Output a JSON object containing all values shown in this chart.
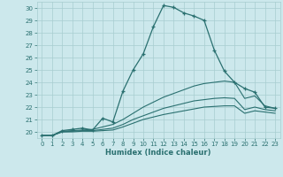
{
  "xlabel": "Humidex (Indice chaleur)",
  "xlim": [
    -0.5,
    23.5
  ],
  "ylim": [
    19.5,
    30.5
  ],
  "yticks": [
    20,
    21,
    22,
    23,
    24,
    25,
    26,
    27,
    28,
    29,
    30
  ],
  "xticks": [
    0,
    1,
    2,
    3,
    4,
    5,
    6,
    7,
    8,
    9,
    10,
    11,
    12,
    13,
    14,
    15,
    16,
    17,
    18,
    19,
    20,
    21,
    22,
    23
  ],
  "bg_color": "#cce8ec",
  "line_color": "#2a7070",
  "lines": [
    {
      "x": [
        0,
        1,
        2,
        3,
        4,
        5,
        6,
        7,
        8,
        9,
        10,
        11,
        12,
        13,
        14,
        15,
        16,
        17,
        18,
        19,
        20,
        21,
        22,
        23
      ],
      "y": [
        19.7,
        19.7,
        20.1,
        20.2,
        20.3,
        20.15,
        21.1,
        20.8,
        23.3,
        25.0,
        26.3,
        28.5,
        30.2,
        30.05,
        29.6,
        29.35,
        29.0,
        26.6,
        24.9,
        24.0,
        23.5,
        23.2,
        22.0,
        21.9
      ],
      "marker": true
    },
    {
      "x": [
        0,
        1,
        2,
        3,
        4,
        5,
        6,
        7,
        8,
        9,
        10,
        11,
        12,
        13,
        14,
        15,
        16,
        17,
        18,
        19,
        20,
        21,
        22,
        23
      ],
      "y": [
        19.7,
        19.7,
        20.05,
        20.1,
        20.15,
        20.2,
        20.4,
        20.6,
        21.0,
        21.5,
        22.0,
        22.4,
        22.8,
        23.1,
        23.4,
        23.7,
        23.9,
        24.0,
        24.1,
        24.0,
        22.7,
        22.9,
        22.1,
        21.9
      ],
      "marker": false
    },
    {
      "x": [
        0,
        1,
        2,
        3,
        4,
        5,
        6,
        7,
        8,
        9,
        10,
        11,
        12,
        13,
        14,
        15,
        16,
        17,
        18,
        19,
        20,
        21,
        22,
        23
      ],
      "y": [
        19.7,
        19.7,
        20.0,
        20.05,
        20.1,
        20.1,
        20.2,
        20.3,
        20.6,
        21.0,
        21.3,
        21.6,
        21.9,
        22.1,
        22.3,
        22.5,
        22.6,
        22.7,
        22.75,
        22.7,
        21.8,
        22.0,
        21.8,
        21.7
      ],
      "marker": false
    },
    {
      "x": [
        0,
        1,
        2,
        3,
        4,
        5,
        6,
        7,
        8,
        9,
        10,
        11,
        12,
        13,
        14,
        15,
        16,
        17,
        18,
        19,
        20,
        21,
        22,
        23
      ],
      "y": [
        19.7,
        19.7,
        20.0,
        20.0,
        20.05,
        20.05,
        20.1,
        20.15,
        20.4,
        20.7,
        21.0,
        21.2,
        21.4,
        21.55,
        21.7,
        21.85,
        22.0,
        22.05,
        22.1,
        22.1,
        21.5,
        21.7,
        21.6,
        21.5
      ],
      "marker": false
    }
  ]
}
